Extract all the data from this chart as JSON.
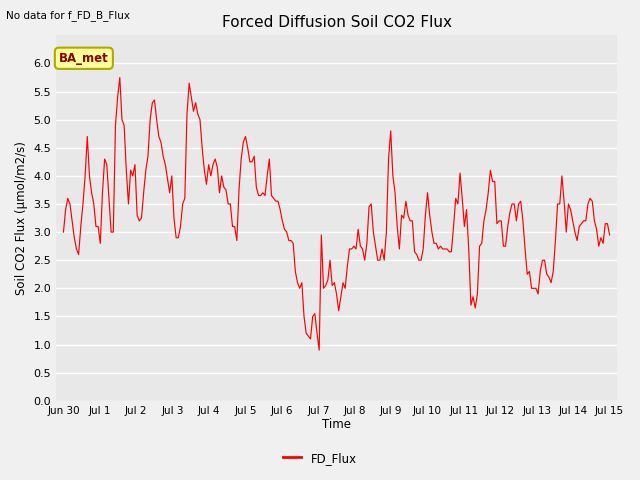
{
  "title": "Forced Diffusion Soil CO2 Flux",
  "top_left_text": "No data for f_FD_B_Flux",
  "ylabel": "Soil CO2 Flux (μmol/m2/s)",
  "xlabel": "Time",
  "ylim": [
    0.0,
    6.5
  ],
  "yticks": [
    0.0,
    0.5,
    1.0,
    1.5,
    2.0,
    2.5,
    3.0,
    3.5,
    4.0,
    4.5,
    5.0,
    5.5,
    6.0
  ],
  "legend_label": "FD_Flux",
  "line_color": "#FF0000",
  "plot_bg_color": "#E8E8E8",
  "fig_bg_color": "#F0F0F0",
  "box_facecolor": "#FFFF99",
  "box_edgecolor": "#AAAA00",
  "box_text": "BA_met",
  "box_text_color": "#8B0000",
  "xtick_labels": [
    "Jun 30",
    "Jul 1",
    "Jul 2",
    "Jul 3",
    "Jul 4",
    "Jul 5",
    "Jul 6",
    "Jul 7",
    "Jul 8",
    "Jul 9",
    "Jul 10",
    "Jul 11",
    "Jul 12",
    "Jul 13",
    "Jul 14",
    "Jul 15"
  ],
  "flux_data": [
    3.0,
    3.4,
    3.6,
    3.5,
    3.2,
    2.9,
    2.7,
    2.6,
    3.1,
    3.5,
    4.0,
    4.7,
    4.0,
    3.7,
    3.5,
    3.1,
    3.1,
    2.8,
    3.7,
    4.3,
    4.2,
    3.6,
    3.0,
    3.0,
    4.9,
    5.4,
    5.75,
    5.0,
    4.9,
    4.1,
    3.5,
    4.1,
    4.0,
    4.2,
    3.3,
    3.2,
    3.25,
    3.7,
    4.1,
    4.35,
    5.0,
    5.3,
    5.35,
    5.0,
    4.7,
    4.6,
    4.35,
    4.2,
    3.95,
    3.7,
    4.0,
    3.25,
    2.9,
    2.9,
    3.1,
    3.5,
    3.6,
    5.1,
    5.65,
    5.4,
    5.15,
    5.3,
    5.1,
    5.0,
    4.5,
    4.1,
    3.85,
    4.2,
    4.0,
    4.2,
    4.3,
    4.15,
    3.7,
    4.0,
    3.8,
    3.75,
    3.5,
    3.5,
    3.1,
    3.1,
    2.85,
    3.75,
    4.3,
    4.6,
    4.7,
    4.5,
    4.25,
    4.25,
    4.35,
    3.8,
    3.65,
    3.65,
    3.7,
    3.65,
    4.0,
    4.3,
    3.65,
    3.6,
    3.55,
    3.55,
    3.4,
    3.2,
    3.05,
    3.0,
    2.85,
    2.85,
    2.8,
    2.3,
    2.1,
    2.0,
    2.1,
    1.5,
    1.2,
    1.15,
    1.1,
    1.5,
    1.55,
    1.2,
    0.9,
    2.95,
    2.0,
    2.05,
    2.15,
    2.5,
    2.05,
    2.1,
    1.9,
    1.6,
    1.85,
    2.1,
    2.0,
    2.4,
    2.7,
    2.7,
    2.75,
    2.7,
    3.05,
    2.75,
    2.7,
    2.5,
    2.8,
    3.45,
    3.5,
    3.0,
    2.75,
    2.5,
    2.5,
    2.7,
    2.5,
    3.0,
    4.3,
    4.8,
    4.0,
    3.7,
    3.1,
    2.7,
    3.3,
    3.25,
    3.55,
    3.3,
    3.2,
    3.2,
    2.65,
    2.6,
    2.5,
    2.5,
    2.7,
    3.3,
    3.7,
    3.3,
    3.0,
    2.8,
    2.8,
    2.7,
    2.75,
    2.7,
    2.7,
    2.7,
    2.65,
    2.65,
    3.1,
    3.6,
    3.5,
    4.05,
    3.6,
    3.1,
    3.4,
    2.7,
    1.7,
    1.85,
    1.65,
    1.9,
    2.75,
    2.8,
    3.2,
    3.4,
    3.7,
    4.1,
    3.9,
    3.9,
    3.15,
    3.2,
    3.2,
    2.75,
    2.75,
    3.1,
    3.35,
    3.5,
    3.5,
    3.2,
    3.5,
    3.55,
    3.2,
    2.7,
    2.25,
    2.3,
    2.0,
    2.0,
    2.0,
    1.9,
    2.3,
    2.5,
    2.5,
    2.25,
    2.2,
    2.1,
    2.3,
    2.85,
    3.5,
    3.5,
    4.0,
    3.55,
    3.0,
    3.5,
    3.4,
    3.2,
    3.0,
    2.85,
    3.1,
    3.15,
    3.2,
    3.2,
    3.5,
    3.6,
    3.55,
    3.2,
    3.05,
    2.75,
    2.9,
    2.8,
    3.15,
    3.15,
    2.95
  ]
}
